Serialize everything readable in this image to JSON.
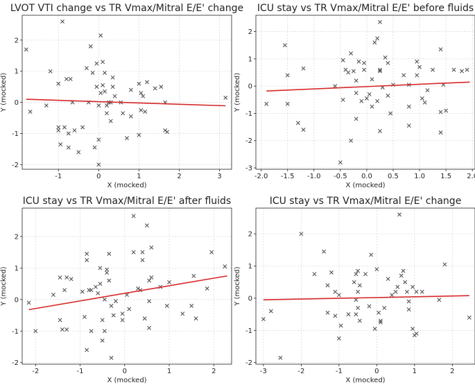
{
  "figure": {
    "titles": [
      "LVOT VTI change vs TR Vmax/Mitral E/E' change",
      "ICU stay vs TR Vmax/Mitral E/E' before fluids",
      "ICU stay vs TR Vmax/Mitral E/E' after fluids",
      "ICU stay vs TR Vmax/Mitral E/E' change"
    ]
  },
  "chart_data": [
    {
      "type": "scatter",
      "title": "LVOT VTI change vs TR Vmax/Mitral E/E' change",
      "xlabel": "X (mocked)",
      "ylabel": "Y (mocked)",
      "xlim": [
        -1.9,
        3.3
      ],
      "ylim": [
        -2.15,
        2.8
      ],
      "xticks": [
        -1,
        0,
        1,
        2,
        3
      ],
      "yticks": [
        -2,
        -1,
        0,
        1,
        2
      ],
      "grid": true,
      "marker": "x",
      "trendline": {
        "color": "#d62728",
        "x": [
          -1.8,
          3.15
        ],
        "y": [
          0.1,
          -0.11
        ]
      },
      "points": [
        [
          -1.8,
          1.7
        ],
        [
          -1.7,
          -0.3
        ],
        [
          -1.3,
          -0.1
        ],
        [
          -1.2,
          1.0
        ],
        [
          -1.0,
          0.6
        ],
        [
          -1.0,
          -0.8
        ],
        [
          -1.0,
          -0.9
        ],
        [
          -0.95,
          -1.35
        ],
        [
          -0.9,
          2.6
        ],
        [
          -0.85,
          -0.8
        ],
        [
          -0.8,
          0.75
        ],
        [
          -0.75,
          -1.0
        ],
        [
          -0.75,
          -1.45
        ],
        [
          -0.7,
          0.75
        ],
        [
          -0.65,
          0.0
        ],
        [
          -0.6,
          -0.9
        ],
        [
          -0.5,
          -1.6
        ],
        [
          -0.4,
          -0.8
        ],
        [
          -0.3,
          1.1
        ],
        [
          -0.25,
          0.0
        ],
        [
          -0.2,
          1.8
        ],
        [
          -0.15,
          0.95
        ],
        [
          -0.1,
          -1.45
        ],
        [
          -0.05,
          1.25
        ],
        [
          -0.05,
          0.5
        ],
        [
          0.0,
          -1.2
        ],
        [
          0.0,
          -2.0
        ],
        [
          0.0,
          -0.1
        ],
        [
          0.05,
          2.15
        ],
        [
          0.05,
          0.3
        ],
        [
          0.1,
          1.3
        ],
        [
          0.1,
          0.55
        ],
        [
          0.15,
          0.95
        ],
        [
          0.15,
          0.35
        ],
        [
          0.2,
          -0.1
        ],
        [
          0.2,
          -0.35
        ],
        [
          0.25,
          0.0
        ],
        [
          0.3,
          -0.6
        ],
        [
          0.3,
          0.0
        ],
        [
          0.35,
          0.8
        ],
        [
          0.35,
          0.5
        ],
        [
          0.4,
          0.2
        ],
        [
          0.55,
          0.0
        ],
        [
          0.6,
          -0.35
        ],
        [
          0.7,
          -1.15
        ],
        [
          0.8,
          -0.45
        ],
        [
          0.8,
          0.4
        ],
        [
          1.0,
          0.6
        ],
        [
          1.0,
          -1.05
        ],
        [
          1.05,
          0.3
        ],
        [
          1.05,
          -0.25
        ],
        [
          1.1,
          0.2
        ],
        [
          1.15,
          -0.3
        ],
        [
          1.2,
          0.65
        ],
        [
          1.4,
          0.45
        ],
        [
          1.55,
          0.5
        ],
        [
          1.65,
          0.0
        ],
        [
          1.65,
          -0.9
        ],
        [
          1.7,
          -0.95
        ],
        [
          3.15,
          0.15
        ]
      ]
    },
    {
      "type": "scatter",
      "title": "ICU stay vs TR Vmax/Mitral E/E' before fluids",
      "xlabel": "X (mocked)",
      "ylabel": "Y (mocked)",
      "xlim": [
        -2.1,
        2.05
      ],
      "ylim": [
        -3.05,
        2.6
      ],
      "xticks": [
        -2.0,
        -1.5,
        -1.0,
        -0.5,
        0.0,
        0.5,
        1.0,
        1.5,
        2.0
      ],
      "yticks": [
        -3,
        -2,
        -1,
        0,
        1,
        2
      ],
      "grid": true,
      "marker": "x",
      "trendline": {
        "color": "#d62728",
        "x": [
          -1.9,
          1.95
        ],
        "y": [
          -0.18,
          0.15
        ]
      },
      "points": [
        [
          -1.9,
          -0.65
        ],
        [
          -1.55,
          1.5
        ],
        [
          -1.5,
          0.4
        ],
        [
          -1.5,
          -0.65
        ],
        [
          -1.3,
          -1.35
        ],
        [
          -1.2,
          -1.6
        ],
        [
          -1.2,
          0.65
        ],
        [
          -0.6,
          0.0
        ],
        [
          -0.5,
          -2.8
        ],
        [
          -0.45,
          0.95
        ],
        [
          -0.45,
          -0.5
        ],
        [
          -0.4,
          0.6
        ],
        [
          -0.35,
          0.5
        ],
        [
          -0.3,
          1.2
        ],
        [
          -0.3,
          -2.0
        ],
        [
          -0.25,
          0.55
        ],
        [
          -0.2,
          -0.25
        ],
        [
          -0.2,
          -1.2
        ],
        [
          -0.2,
          0.2
        ],
        [
          -0.15,
          0.9
        ],
        [
          -0.1,
          -0.55
        ],
        [
          -0.05,
          0.85
        ],
        [
          -0.05,
          0.6
        ],
        [
          0.0,
          -0.45
        ],
        [
          0.05,
          -0.3
        ],
        [
          0.1,
          -0.75
        ],
        [
          0.1,
          0.25
        ],
        [
          0.15,
          1.6
        ],
        [
          0.2,
          1.75
        ],
        [
          0.2,
          -0.55
        ],
        [
          0.25,
          2.35
        ],
        [
          0.25,
          0.55
        ],
        [
          0.25,
          0.6
        ],
        [
          0.25,
          -1.65
        ],
        [
          0.3,
          -0.05
        ],
        [
          0.35,
          1.05
        ],
        [
          0.4,
          -0.35
        ],
        [
          0.4,
          0.85
        ],
        [
          0.45,
          -1.0
        ],
        [
          0.5,
          0.05
        ],
        [
          0.7,
          0.4
        ],
        [
          0.8,
          -0.75
        ],
        [
          0.8,
          -1.45
        ],
        [
          0.8,
          0.05
        ],
        [
          0.95,
          0.9
        ],
        [
          0.95,
          0.4
        ],
        [
          1.0,
          0.7
        ],
        [
          1.05,
          -0.45
        ],
        [
          1.1,
          -0.6
        ],
        [
          1.15,
          -0.15
        ],
        [
          1.25,
          0.6
        ],
        [
          1.4,
          1.35
        ],
        [
          1.4,
          -0.95
        ],
        [
          1.45,
          0.05
        ],
        [
          1.4,
          -1.7
        ],
        [
          1.5,
          -0.9
        ],
        [
          1.65,
          0.6
        ],
        [
          1.8,
          0.55
        ],
        [
          1.9,
          0.6
        ]
      ]
    },
    {
      "type": "scatter",
      "title": "ICU stay vs TR Vmax/Mitral E/E' after fluids",
      "xlabel": "X (mocked)",
      "ylabel": "Y (mocked)",
      "xlim": [
        -2.3,
        2.4
      ],
      "ylim": [
        -2.05,
        2.9
      ],
      "xticks": [
        -2,
        -1,
        0,
        1,
        2
      ],
      "yticks": [
        -2,
        -1,
        0,
        1,
        2
      ],
      "grid": true,
      "marker": "x",
      "trendline": {
        "color": "#d62728",
        "x": [
          -2.15,
          2.3
        ],
        "y": [
          -0.32,
          0.75
        ]
      },
      "points": [
        [
          -2.15,
          -0.1
        ],
        [
          -2.0,
          -1.0
        ],
        [
          -1.6,
          0.15
        ],
        [
          -1.45,
          0.7
        ],
        [
          -1.45,
          -0.65
        ],
        [
          -1.4,
          -0.95
        ],
        [
          -1.35,
          0.3
        ],
        [
          -1.3,
          0.7
        ],
        [
          -1.2,
          0.65
        ],
        [
          -1.3,
          -0.95
        ],
        [
          -0.95,
          0.25
        ],
        [
          -0.9,
          -0.55
        ],
        [
          -0.85,
          1.45
        ],
        [
          -0.85,
          1.25
        ],
        [
          -0.85,
          -1.6
        ],
        [
          -0.8,
          0.3
        ],
        [
          -0.75,
          0.3
        ],
        [
          -0.75,
          -1.0
        ],
        [
          -0.65,
          0.4
        ],
        [
          -0.6,
          0.2
        ],
        [
          -0.55,
          0.5
        ],
        [
          -0.55,
          1.0
        ],
        [
          -0.5,
          -0.65
        ],
        [
          -0.45,
          0.0
        ],
        [
          -0.45,
          -1.0
        ],
        [
          -0.5,
          -1.3
        ],
        [
          -0.4,
          0.95
        ],
        [
          -0.4,
          0.85
        ],
        [
          -0.35,
          1.45
        ],
        [
          -0.35,
          0.6
        ],
        [
          -0.3,
          -0.2
        ],
        [
          -0.3,
          -1.85
        ],
        [
          -0.25,
          -0.5
        ],
        [
          -0.2,
          -0.05
        ],
        [
          -0.05,
          -0.45
        ],
        [
          -0.05,
          -0.65
        ],
        [
          0.05,
          0.15
        ],
        [
          0.1,
          -0.3
        ],
        [
          0.2,
          2.65
        ],
        [
          0.2,
          1.5
        ],
        [
          0.3,
          0.35
        ],
        [
          0.35,
          0.3
        ],
        [
          0.4,
          1.25
        ],
        [
          0.4,
          1.5
        ],
        [
          0.45,
          -0.6
        ],
        [
          0.5,
          2.35
        ],
        [
          0.55,
          0.6
        ],
        [
          0.55,
          -0.05
        ],
        [
          0.55,
          -0.9
        ],
        [
          0.6,
          1.65
        ],
        [
          0.6,
          0.7
        ],
        [
          0.8,
          0.4
        ],
        [
          0.95,
          -0.2
        ],
        [
          1.0,
          0.55
        ],
        [
          1.3,
          -0.45
        ],
        [
          1.5,
          -0.2
        ],
        [
          1.55,
          0.75
        ],
        [
          1.6,
          -0.6
        ],
        [
          1.85,
          0.35
        ],
        [
          1.95,
          1.5
        ],
        [
          2.25,
          1.05
        ]
      ]
    },
    {
      "type": "scatter",
      "title": "ICU stay vs TR Vmax/Mitral E/E' change",
      "xlabel": "X (mocked)",
      "ylabel": "Y (mocked)",
      "xlim": [
        -3.2,
        2.6
      ],
      "ylim": [
        -2.05,
        2.8
      ],
      "xticks": [
        -3,
        -2,
        -1,
        0,
        1,
        2
      ],
      "yticks": [
        -2,
        -1,
        0,
        1,
        2
      ],
      "grid": true,
      "marker": "x",
      "trendline": {
        "color": "#d62728",
        "x": [
          -3.0,
          2.45
        ],
        "y": [
          -0.05,
          0.08
        ]
      },
      "points": [
        [
          -3.0,
          -0.65
        ],
        [
          -2.8,
          -0.4
        ],
        [
          -2.55,
          -1.85
        ],
        [
          -2.0,
          2.0
        ],
        [
          -1.65,
          0.75
        ],
        [
          -1.4,
          1.45
        ],
        [
          -1.3,
          0.4
        ],
        [
          -1.3,
          -0.45
        ],
        [
          -1.2,
          0.8
        ],
        [
          -1.1,
          -0.55
        ],
        [
          -1.1,
          0.2
        ],
        [
          -1.0,
          0.1
        ],
        [
          -1.0,
          -1.25
        ],
        [
          -0.95,
          -0.85
        ],
        [
          -0.75,
          -0.5
        ],
        [
          -0.6,
          0.5
        ],
        [
          -0.55,
          0.75
        ],
        [
          -0.55,
          -0.05
        ],
        [
          -0.55,
          -0.5
        ],
        [
          -0.5,
          0.85
        ],
        [
          -0.45,
          0.4
        ],
        [
          -0.5,
          0.2
        ],
        [
          -0.45,
          -0.7
        ],
        [
          -0.5,
          -0.3
        ],
        [
          -0.3,
          0.75
        ],
        [
          -0.2,
          -0.25
        ],
        [
          -0.15,
          1.35
        ],
        [
          -0.05,
          -0.95
        ],
        [
          0.0,
          0.9
        ],
        [
          0.05,
          -0.45
        ],
        [
          0.1,
          -0.7
        ],
        [
          0.1,
          -0.75
        ],
        [
          0.2,
          -0.3
        ],
        [
          0.3,
          0.6
        ],
        [
          0.4,
          0.1
        ],
        [
          0.5,
          0.2
        ],
        [
          0.55,
          0.35
        ],
        [
          0.6,
          2.6
        ],
        [
          0.65,
          0.7
        ],
        [
          0.7,
          0.85
        ],
        [
          0.75,
          0.5
        ],
        [
          0.8,
          0.2
        ],
        [
          0.85,
          -0.1
        ],
        [
          0.85,
          -0.35
        ],
        [
          0.95,
          0.35
        ],
        [
          0.95,
          -0.95
        ],
        [
          1.0,
          -1.15
        ],
        [
          1.05,
          0.2
        ],
        [
          1.05,
          -1.1
        ],
        [
          1.2,
          0.2
        ],
        [
          1.65,
          -0.05
        ],
        [
          1.8,
          1.05
        ],
        [
          2.45,
          -0.6
        ]
      ]
    }
  ]
}
